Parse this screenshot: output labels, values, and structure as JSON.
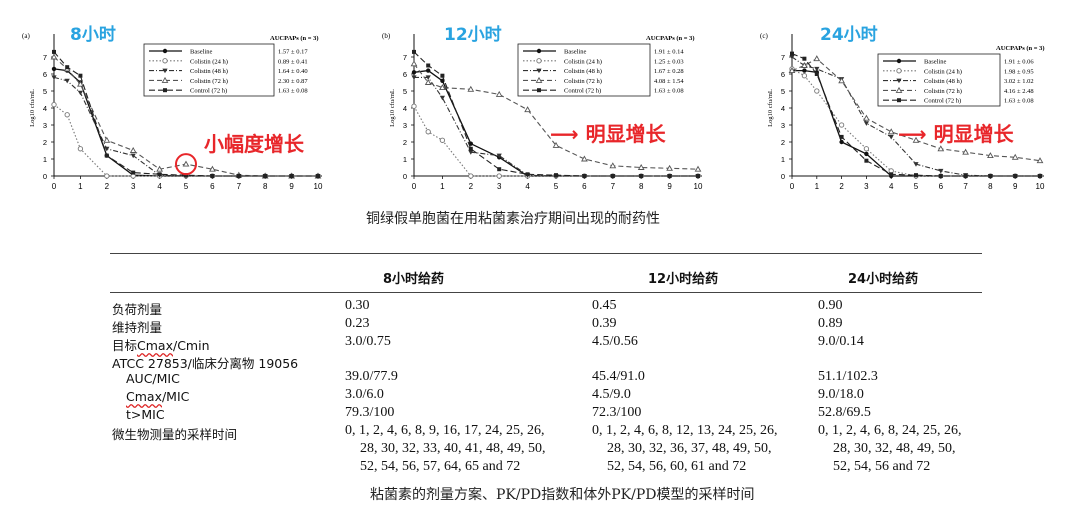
{
  "chart_data": [
    {
      "panel_label": "(a)",
      "type": "line",
      "overlay_title": "8小时",
      "annotation": "小幅度增长",
      "ylabel": "Log10 cfu/mL",
      "xlim": [
        0,
        10
      ],
      "ylim": [
        0,
        8
      ],
      "x_ticks": [
        "0",
        "1",
        "2",
        "3",
        "4",
        "5",
        "6",
        "7",
        "8",
        "9",
        "10"
      ],
      "y_ticks": [
        "0",
        "1",
        "2",
        "3",
        "4",
        "5",
        "6",
        "7"
      ],
      "legend_title": "AUCPAPs (n = 3)",
      "series": [
        {
          "name": "Baseline",
          "value": "1.57 ± 0.17",
          "style": "solid-dot",
          "x": [
            0,
            0.5,
            1,
            2,
            3,
            4,
            5,
            6,
            7,
            8,
            9,
            10
          ],
          "y": [
            6.3,
            6.2,
            5.5,
            1.2,
            0.05,
            0,
            0,
            0,
            0,
            0,
            0,
            0
          ]
        },
        {
          "name": "Colistin (24 h)",
          "value": "0.89 ± 0.41",
          "style": "dotted-open",
          "x": [
            0,
            0.5,
            1,
            2,
            3,
            4,
            5,
            6,
            7,
            8,
            9,
            10
          ],
          "y": [
            4.2,
            3.6,
            1.6,
            0,
            0,
            0,
            0,
            0,
            0,
            0,
            0,
            0
          ]
        },
        {
          "name": "Colistin (48 h)",
          "value": "1.64 ± 0.40",
          "style": "dashdot-tri",
          "x": [
            0,
            0.5,
            1,
            2,
            3,
            4,
            5,
            6,
            7,
            8,
            9,
            10
          ],
          "y": [
            5.8,
            5.6,
            4.9,
            1.6,
            1.2,
            0.05,
            0,
            0,
            0,
            0,
            0,
            0
          ]
        },
        {
          "name": "Colistin (72 h)",
          "value": "2.30 ± 0.87",
          "style": "dashed-opentri",
          "x": [
            0,
            0.5,
            1,
            2,
            3,
            4,
            5,
            6,
            7,
            8,
            9,
            10
          ],
          "y": [
            7.0,
            6.3,
            5.4,
            2.1,
            1.5,
            0.4,
            0.7,
            0.4,
            0.05,
            0,
            0,
            0
          ]
        },
        {
          "name": "Control (72 h)",
          "value": "1.63 ± 0.08",
          "style": "dashed-square",
          "x": [
            0,
            0.5,
            1,
            2,
            3,
            4,
            5,
            6,
            7,
            8,
            9,
            10
          ],
          "y": [
            7.3,
            6.4,
            5.9,
            1.2,
            0.2,
            0.1,
            0.05,
            0,
            0,
            0,
            0,
            0
          ]
        }
      ]
    },
    {
      "panel_label": "(b)",
      "type": "line",
      "overlay_title": "12小时",
      "annotation": "明显增长",
      "ylabel": "Log10 cfu/mL",
      "xlim": [
        0,
        10
      ],
      "ylim": [
        0,
        8
      ],
      "x_ticks": [
        "0",
        "1",
        "2",
        "3",
        "4",
        "5",
        "6",
        "7",
        "8",
        "9",
        "10"
      ],
      "y_ticks": [
        "0",
        "1",
        "2",
        "3",
        "4",
        "5",
        "6",
        "7"
      ],
      "legend_title": "AUCPAPs (n = 3)",
      "series": [
        {
          "name": "Baseline",
          "value": "1.91 ± 0.14",
          "style": "solid-dot",
          "x": [
            0,
            0.5,
            1,
            2,
            3,
            4,
            5,
            6,
            7,
            8,
            9,
            10
          ],
          "y": [
            6.1,
            6.2,
            5.6,
            1.9,
            1.1,
            0,
            0,
            0,
            0,
            0,
            0,
            0
          ]
        },
        {
          "name": "Colistin (24 h)",
          "value": "1.25 ± 0.03",
          "style": "dotted-open",
          "x": [
            0,
            0.5,
            1,
            2,
            3,
            4,
            5,
            6,
            7,
            8,
            9,
            10
          ],
          "y": [
            4.1,
            2.6,
            2.1,
            0,
            0,
            0,
            0,
            0,
            0,
            0,
            0,
            0
          ]
        },
        {
          "name": "Colistin (48 h)",
          "value": "1.67 ± 0.28",
          "style": "dashdot-tri",
          "x": [
            0,
            0.5,
            1,
            2,
            3,
            4,
            5,
            6,
            7,
            8,
            9,
            10
          ],
          "y": [
            5.8,
            5.8,
            4.6,
            1.4,
            1.2,
            0.05,
            0,
            0,
            0,
            0,
            0,
            0
          ]
        },
        {
          "name": "Colistin (72 h)",
          "value": "4.08 ± 1.54",
          "style": "dashed-opentri",
          "x": [
            0,
            0.5,
            1,
            2,
            3,
            4,
            5,
            6,
            7,
            8,
            9,
            10
          ],
          "y": [
            6.6,
            5.5,
            5.2,
            5.1,
            4.8,
            3.9,
            1.8,
            1.0,
            0.6,
            0.5,
            0.45,
            0.4
          ]
        },
        {
          "name": "Control (72 h)",
          "value": "1.63 ± 0.08",
          "style": "dashed-square",
          "x": [
            0,
            0.5,
            1,
            2,
            3,
            4,
            5,
            6,
            7,
            8,
            9,
            10
          ],
          "y": [
            7.3,
            6.5,
            5.9,
            1.6,
            0.4,
            0.1,
            0.05,
            0,
            0,
            0,
            0,
            0
          ]
        }
      ]
    },
    {
      "panel_label": "(c)",
      "type": "line",
      "overlay_title": "24小时",
      "annotation": "明显增长",
      "ylabel": "Log10 cfu/mL",
      "xlim": [
        0,
        10
      ],
      "ylim": [
        0,
        8
      ],
      "x_ticks": [
        "0",
        "1",
        "2",
        "3",
        "4",
        "5",
        "6",
        "7",
        "8",
        "9",
        "10"
      ],
      "y_ticks": [
        "0",
        "1",
        "2",
        "3",
        "4",
        "5",
        "6",
        "7"
      ],
      "legend_title": "AUCPAPs (n = 3)",
      "series": [
        {
          "name": "Baseline",
          "value": "1.91 ± 0.06",
          "style": "solid-dot",
          "x": [
            0,
            0.5,
            1,
            2,
            3,
            4,
            5,
            6,
            7,
            8,
            9,
            10
          ],
          "y": [
            6.2,
            6.2,
            6.1,
            2.0,
            1.3,
            0,
            0,
            0,
            0,
            0,
            0,
            0
          ]
        },
        {
          "name": "Colistin (24 h)",
          "value": "1.98 ± 0.95",
          "style": "dotted-open",
          "x": [
            0,
            0.5,
            1,
            2,
            3,
            4,
            5,
            6,
            7,
            8,
            9,
            10
          ],
          "y": [
            6.3,
            5.9,
            5.0,
            3.0,
            1.6,
            0.3,
            0,
            0,
            0,
            0,
            0,
            0
          ]
        },
        {
          "name": "Colistin (48 h)",
          "value": "3.02 ± 1.02",
          "style": "dashdot-tri",
          "x": [
            0,
            0.5,
            1,
            2,
            3,
            4,
            5,
            6,
            7,
            8,
            9,
            10
          ],
          "y": [
            7.0,
            6.5,
            6.3,
            5.7,
            3.1,
            2.3,
            0.7,
            0.3,
            0.05,
            0,
            0,
            0
          ]
        },
        {
          "name": "Colistin (72 h)",
          "value": "4.16 ± 2.48",
          "style": "dashed-opentri",
          "x": [
            0,
            0.5,
            1,
            2,
            3,
            4,
            5,
            6,
            7,
            8,
            9,
            10
          ],
          "y": [
            6.2,
            6.5,
            6.9,
            5.6,
            3.4,
            2.6,
            2.1,
            1.6,
            1.4,
            1.2,
            1.1,
            0.9
          ]
        },
        {
          "name": "Control (72 h)",
          "value": "1.63 ± 0.08",
          "style": "dashed-square",
          "x": [
            0,
            0.5,
            1,
            2,
            3,
            4,
            5,
            6,
            7,
            8,
            9,
            10
          ],
          "y": [
            7.2,
            6.9,
            6.0,
            2.3,
            0.9,
            0.1,
            0.05,
            0,
            0,
            0,
            0,
            0
          ]
        }
      ]
    }
  ],
  "figure_caption": "铜绿假单胞菌在用粘菌素治疗期间出现的耐药性",
  "table": {
    "headers": [
      "8小时给药",
      "12小时给药",
      "24小时给药"
    ],
    "rows": [
      {
        "label": "负荷剂量",
        "values": [
          "0.30",
          "0.45",
          "0.90"
        ]
      },
      {
        "label": "维持剂量",
        "values": [
          "0.23",
          "0.39",
          "0.89"
        ]
      },
      {
        "label": "目标Cmax/Cmin",
        "values": [
          "3.0/0.75",
          "4.5/0.56",
          "9.0/0.14"
        ]
      },
      {
        "label": "ATCC 27853/临床分离物 19056",
        "values": [
          "",
          "",
          ""
        ]
      },
      {
        "label": "AUC/MIC",
        "values": [
          "39.0/77.9",
          "45.4/91.0",
          "51.1/102.3"
        ]
      },
      {
        "label": "Cmax/MIC",
        "values": [
          "3.0/6.0",
          "4.5/9.0",
          "9.0/18.0"
        ]
      },
      {
        "label": "t>MIC",
        "values": [
          "79.3/100",
          "72.3/100",
          "52.8/69.5"
        ]
      },
      {
        "label": "微生物测量的采样时间",
        "values": [
          [
            "0, 1, 2, 4, 6, 8, 9, 16, 17, 24, 25, 26,",
            "28, 30, 32, 33, 40, 41, 48, 49, 50,",
            "52, 54, 56, 57, 64, 65 and 72"
          ],
          [
            "0, 1, 2, 4, 6, 8, 12, 13, 24, 25, 26,",
            "28, 30, 32, 36, 37, 48, 49, 50,",
            "52, 54, 56, 60, 61 and 72"
          ],
          [
            "0, 1, 2, 4, 6, 8, 24, 25, 26,",
            "28, 30, 32, 48, 49, 50,",
            "52, 54, 56 and 72"
          ]
        ]
      }
    ],
    "caption": "粘菌素的剂量方案、PK/PD指数和体外PK/PD模型的采样时间"
  }
}
